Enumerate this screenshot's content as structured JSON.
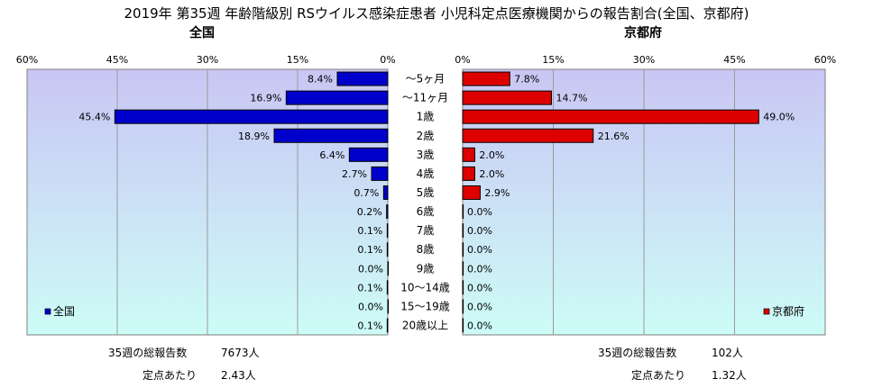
{
  "chart_data": [
    {
      "type": "bar",
      "orientation": "horizontal",
      "title": "2019年 第35週 年齢階級別 RSウイルス感染症患者 小児科定点医療機関からの報告割合(全国、京都府)",
      "subtitle": "全国",
      "categories": [
        "～5ヶ月",
        "～11ヶ月",
        "1歳",
        "2歳",
        "3歳",
        "4歳",
        "5歳",
        "6歳",
        "7歳",
        "8歳",
        "9歳",
        "10～14歳",
        "15～19歳",
        "20歳以上"
      ],
      "series": [
        {
          "name": "全国",
          "color": "#0000cc",
          "values": [
            8.4,
            16.9,
            45.4,
            18.9,
            6.4,
            2.7,
            0.7,
            0.2,
            0.1,
            0.1,
            0.0,
            0.1,
            0.0,
            0.1
          ],
          "labels": [
            "8.4%",
            "16.9%",
            "45.4%",
            "18.9%",
            "6.4%",
            "2.7%",
            "0.7%",
            "0.2%",
            "0.1%",
            "0.1%",
            "0.0%",
            "0.1%",
            "0.0%",
            "0.1%"
          ]
        }
      ],
      "xlim": [
        0,
        60
      ],
      "ticks": [
        "60%",
        "45%",
        "30%",
        "15%",
        "0%"
      ],
      "grid": true,
      "legend_placement": "bottom-left",
      "footer": {
        "total_label": "35週の総報告数",
        "total_value": "7673人",
        "per_label": "定点あたり",
        "per_value": "2.43人"
      }
    },
    {
      "type": "bar",
      "orientation": "horizontal",
      "subtitle": "京都府",
      "categories": [
        "～5ヶ月",
        "～11ヶ月",
        "1歳",
        "2歳",
        "3歳",
        "4歳",
        "5歳",
        "6歳",
        "7歳",
        "8歳",
        "9歳",
        "10～14歳",
        "15～19歳",
        "20歳以上"
      ],
      "series": [
        {
          "name": "京都府",
          "color": "#dd0000",
          "values": [
            7.8,
            14.7,
            49.0,
            21.6,
            2.0,
            2.0,
            2.9,
            0.0,
            0.0,
            0.0,
            0.0,
            0.0,
            0.0,
            0.0
          ],
          "labels": [
            "7.8%",
            "14.7%",
            "49.0%",
            "21.6%",
            "2.0%",
            "2.0%",
            "2.9%",
            "0.0%",
            "0.0%",
            "0.0%",
            "0.0%",
            "0.0%",
            "0.0%",
            "0.0%"
          ]
        }
      ],
      "xlim": [
        0,
        60
      ],
      "ticks": [
        "0%",
        "15%",
        "30%",
        "45%",
        "60%"
      ],
      "grid": true,
      "legend_placement": "bottom-right",
      "footer": {
        "total_label": "35週の総報告数",
        "total_value": "102人",
        "per_label": "定点あたり",
        "per_value": "1.32人"
      }
    }
  ]
}
